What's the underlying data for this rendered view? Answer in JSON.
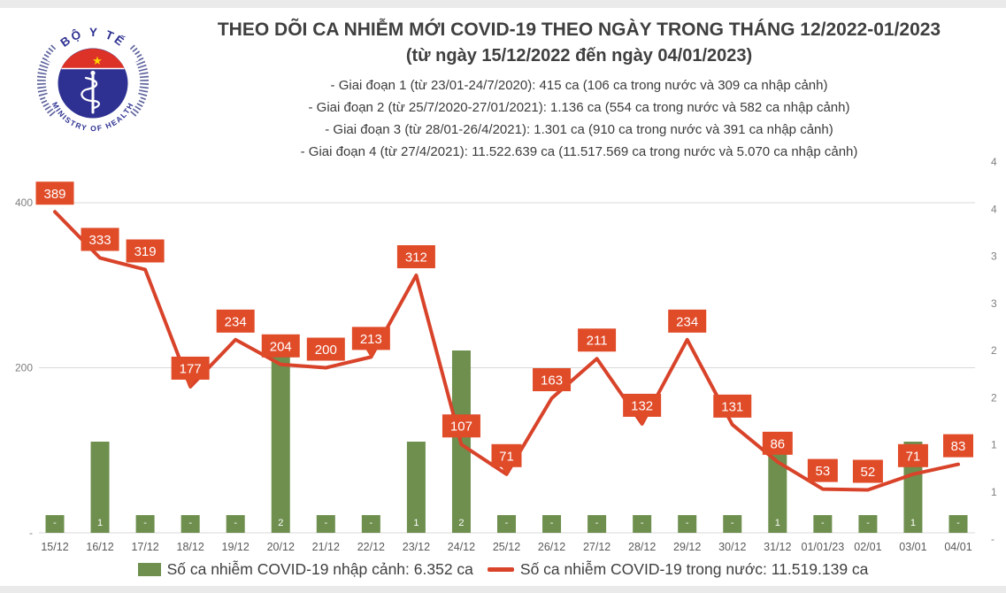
{
  "header": {
    "logo": {
      "top_text": "BỘ Y TẾ",
      "bottom_text": "MINISTRY OF HEALTH"
    },
    "title": "THEO DÕI CA NHIỄM MỚI COVID-19 THEO NGÀY TRONG THÁNG 12/2022-01/2023",
    "subtitle": "(từ ngày 15/12/2022 đến ngày 04/01/2023)",
    "phases": [
      "- Giai đoạn 1 (từ 23/01-24/7/2020): 415 ca (106 ca trong nước và 309 ca nhập cảnh)",
      "- Giai đoạn 2 (từ 25/7/2020-27/01/2021): 1.136 ca (554 ca trong nước và 582 ca nhập cảnh)",
      "- Giai đoạn 3 (từ 28/01-26/4/2021): 1.301 ca (910 ca trong nước và 391 ca nhập cảnh)",
      "- Giai đoạn 4 (từ 27/4/2021): 11.522.639 ca (11.517.569 ca trong nước và 5.070 ca nhập cảnh)"
    ]
  },
  "chart_data": {
    "type": "bar+line",
    "categories": [
      "15/12",
      "16/12",
      "17/12",
      "18/12",
      "19/12",
      "20/12",
      "21/12",
      "22/12",
      "23/12",
      "24/12",
      "25/12",
      "26/12",
      "27/12",
      "28/12",
      "29/12",
      "30/12",
      "31/12",
      "01/01/23",
      "02/01",
      "03/01",
      "04/01"
    ],
    "series": [
      {
        "name": "Số ca nhiễm COVID-19 nhập cảnh",
        "type": "bar",
        "axis": "right",
        "color": "#6e8f4e",
        "values": [
          0,
          1,
          0,
          0,
          0,
          2,
          0,
          0,
          1,
          2,
          0,
          0,
          0,
          0,
          0,
          0,
          1,
          0,
          0,
          1,
          0
        ],
        "labels": [
          "-",
          "1",
          "-",
          "-",
          "-",
          "2",
          "-",
          "-",
          "1",
          "2",
          "-",
          "-",
          "-",
          "-",
          "-",
          "-",
          "1",
          "-",
          "-",
          "1",
          "-"
        ]
      },
      {
        "name": "Số ca nhiễm COVID-19 trong nước",
        "type": "line",
        "axis": "left",
        "color": "#d8432a",
        "label_box_color": "#e04b28",
        "values": [
          389,
          333,
          319,
          177,
          234,
          204,
          200,
          213,
          312,
          107,
          71,
          163,
          211,
          132,
          234,
          131,
          86,
          53,
          52,
          71,
          83
        ]
      }
    ],
    "left_axis": {
      "ticks": [
        {
          "label": "400",
          "value": 400
        },
        {
          "label": "200",
          "value": 200
        },
        {
          "label": "-",
          "value": 0
        }
      ]
    },
    "right_axis": {
      "tick_labels_top_to_bottom": [
        "4",
        "4",
        "3",
        "3",
        "2",
        "2",
        "1",
        "1",
        "-"
      ]
    },
    "callout_pointer_indexes": [
      3,
      7,
      10,
      13
    ],
    "grid": "horizontal",
    "legend_position": "bottom",
    "text_color_axis": "#7f7f7f",
    "text_color_xlabels": "#595959"
  },
  "legend": {
    "imported": "Số ca nhiễm COVID-19 nhập cảnh: 6.352 ca",
    "domestic": "Số ca nhiễm COVID-19 trong nước: 11.519.139 ca"
  }
}
